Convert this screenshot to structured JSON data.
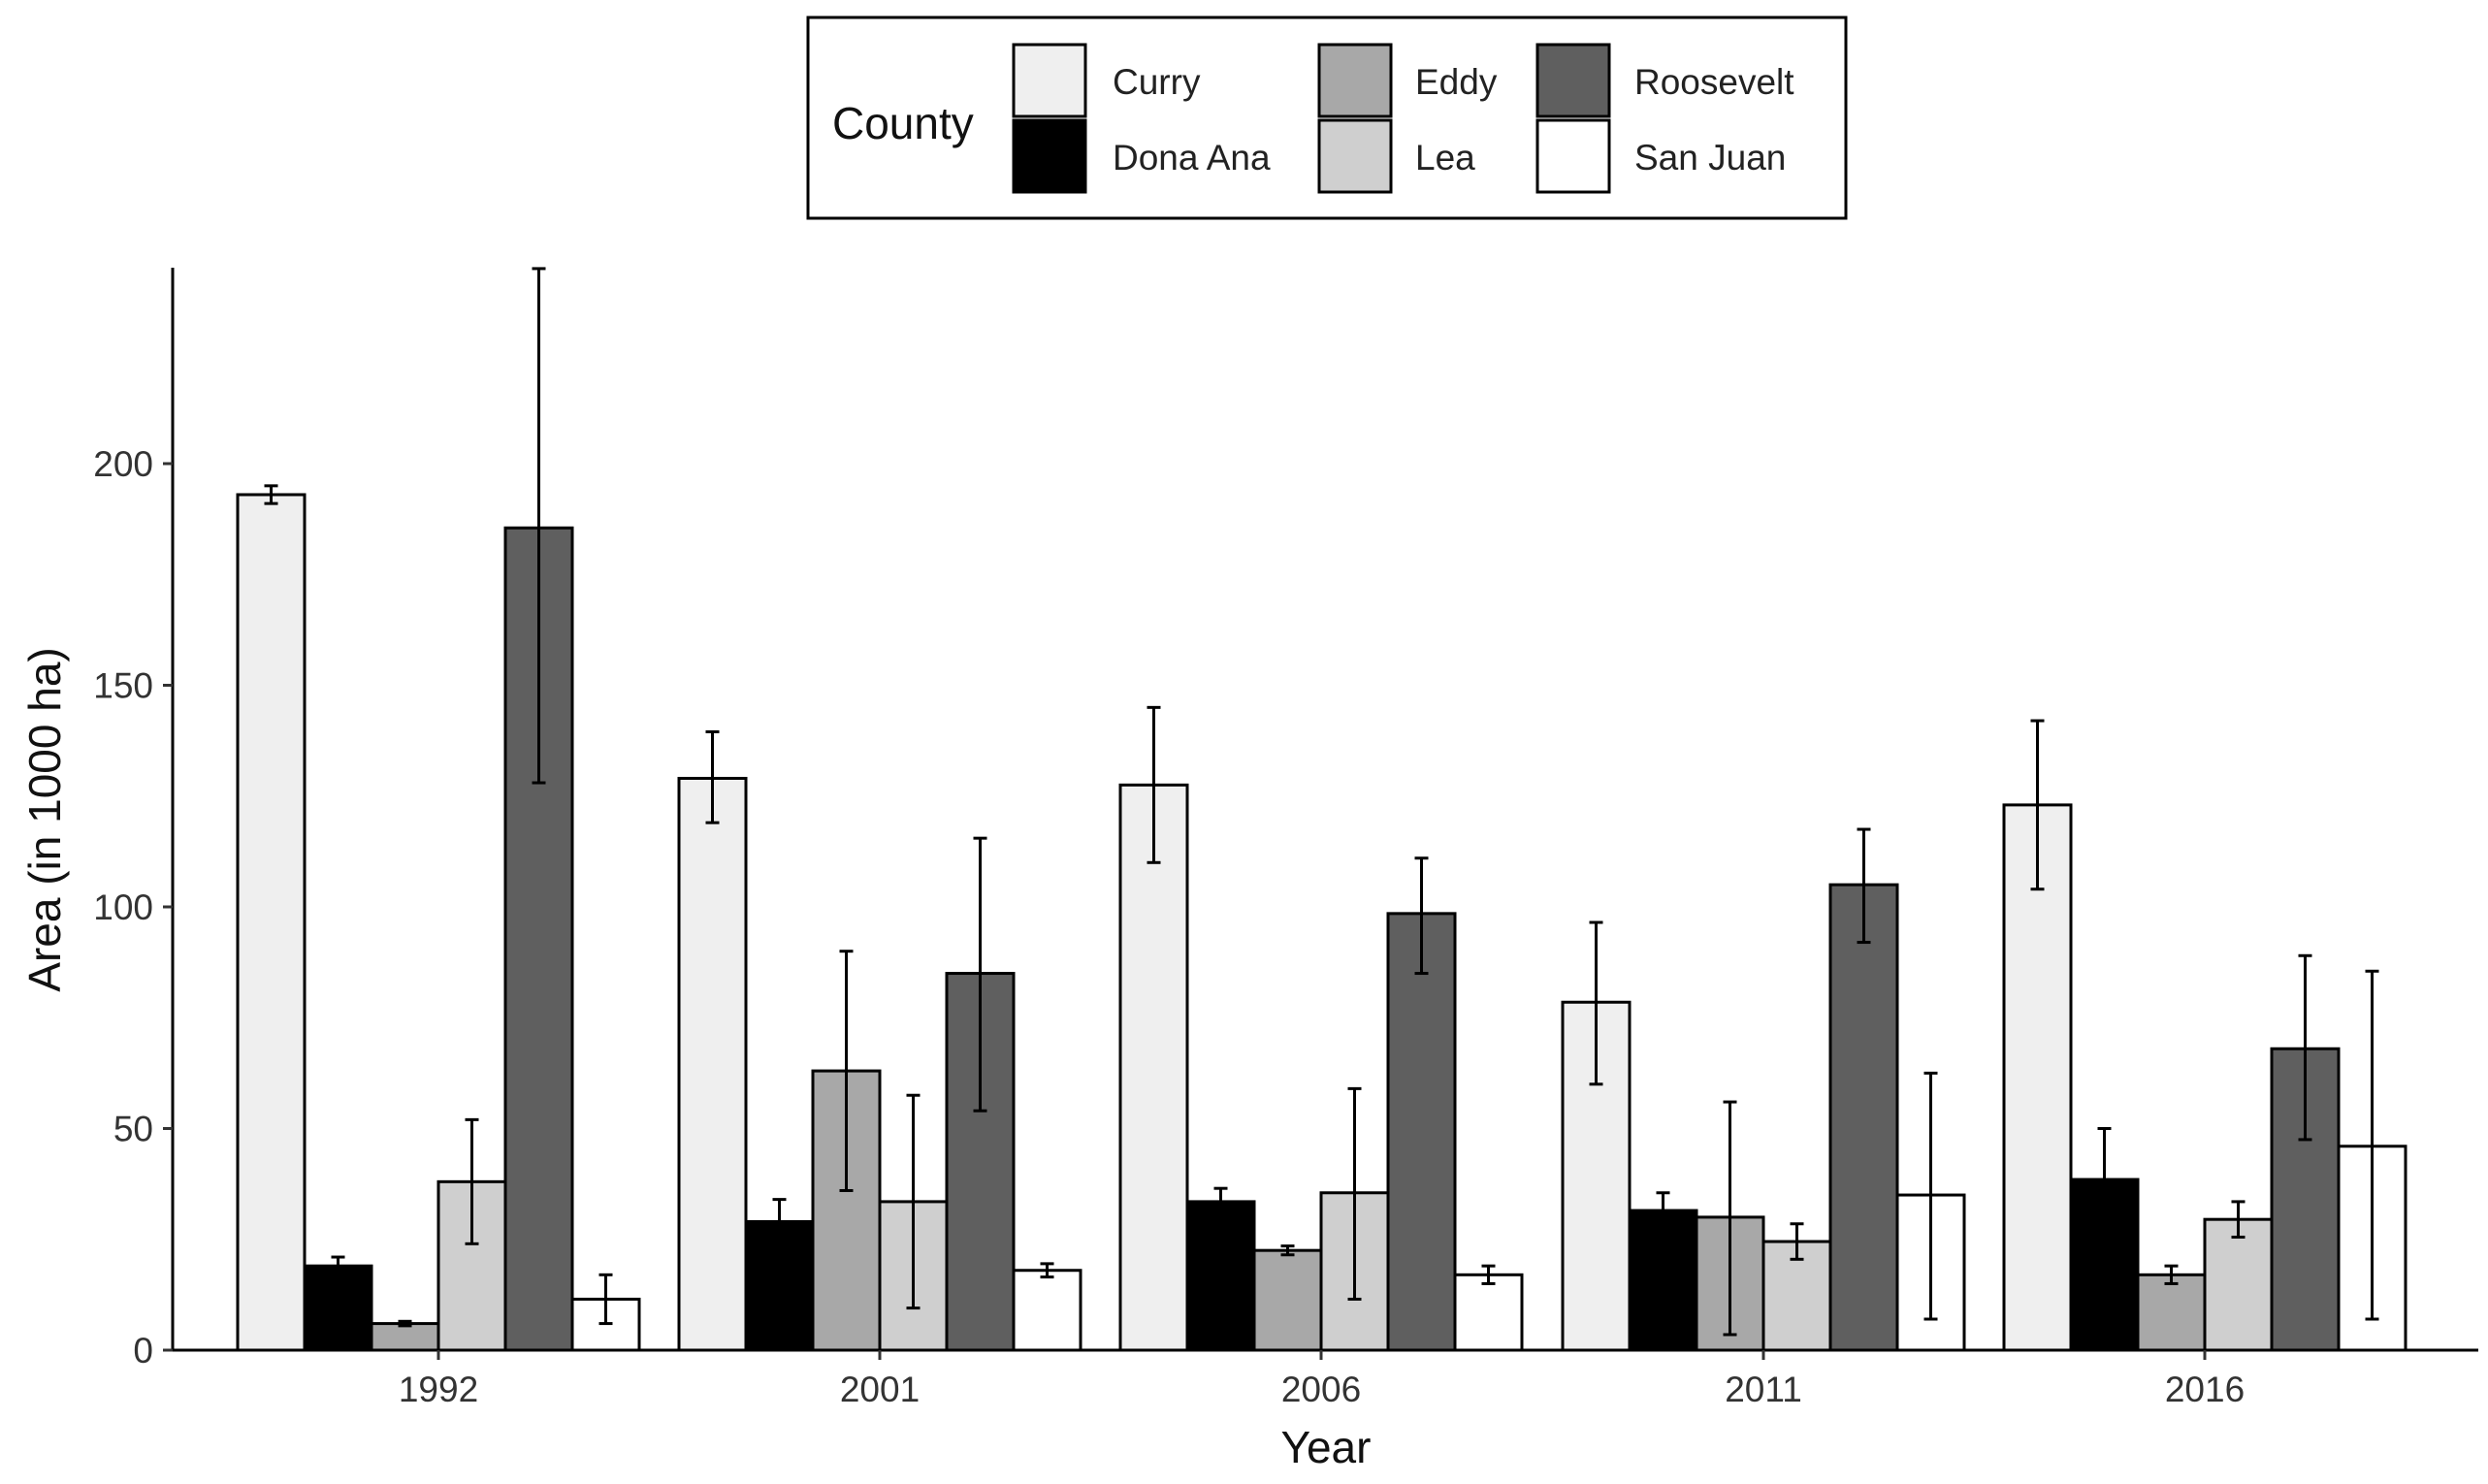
{
  "chart_data": {
    "type": "bar",
    "title": "",
    "xlabel": "Year",
    "ylabel": "Area (in 1000 ha)",
    "ylim": [
      0,
      245
    ],
    "yticks": [
      0,
      50,
      100,
      150,
      200
    ],
    "categories": [
      "1992",
      "2001",
      "2006",
      "2011",
      "2016"
    ],
    "legend": {
      "title": "County",
      "position": "top"
    },
    "series": [
      {
        "name": "Curry",
        "color": "#efefef",
        "values": [
          193,
          129,
          127.5,
          78.5,
          123
        ],
        "err_low": [
          191,
          119,
          110,
          60,
          104
        ],
        "err_high": [
          195,
          139.5,
          145,
          96.5,
          142
        ]
      },
      {
        "name": "Dona Ana",
        "color": "#000000",
        "values": [
          19,
          29,
          33.5,
          31.5,
          38.5
        ],
        "err_low": [
          17,
          24,
          31,
          28,
          27
        ],
        "err_high": [
          21,
          34,
          36.5,
          35.5,
          50
        ]
      },
      {
        "name": "Eddy",
        "color": "#a8a8a8",
        "values": [
          6,
          63,
          22.5,
          30,
          17
        ],
        "err_low": [
          5.5,
          36,
          21.5,
          3.5,
          15
        ],
        "err_high": [
          6.5,
          90,
          23.5,
          56,
          19
        ]
      },
      {
        "name": "Lea",
        "color": "#cfcfcf",
        "values": [
          38,
          33.5,
          35.5,
          24.5,
          29.5
        ],
        "err_low": [
          24,
          9.5,
          11.5,
          20.5,
          25.5
        ],
        "err_high": [
          52,
          57.5,
          59,
          28.5,
          33.5
        ]
      },
      {
        "name": "Roosevelt",
        "color": "#5f5f5f",
        "values": [
          185.5,
          85,
          98.5,
          105,
          68
        ],
        "err_low": [
          128,
          54,
          85,
          92,
          47.5
        ],
        "err_high": [
          244,
          115.5,
          111,
          117.5,
          89
        ]
      },
      {
        "name": "San Juan",
        "color": "#ffffff",
        "values": [
          11.5,
          18,
          17,
          35,
          46
        ],
        "err_low": [
          6,
          16.5,
          15,
          7,
          7
        ],
        "err_high": [
          17,
          19.5,
          19,
          62.5,
          85.5
        ]
      }
    ]
  }
}
